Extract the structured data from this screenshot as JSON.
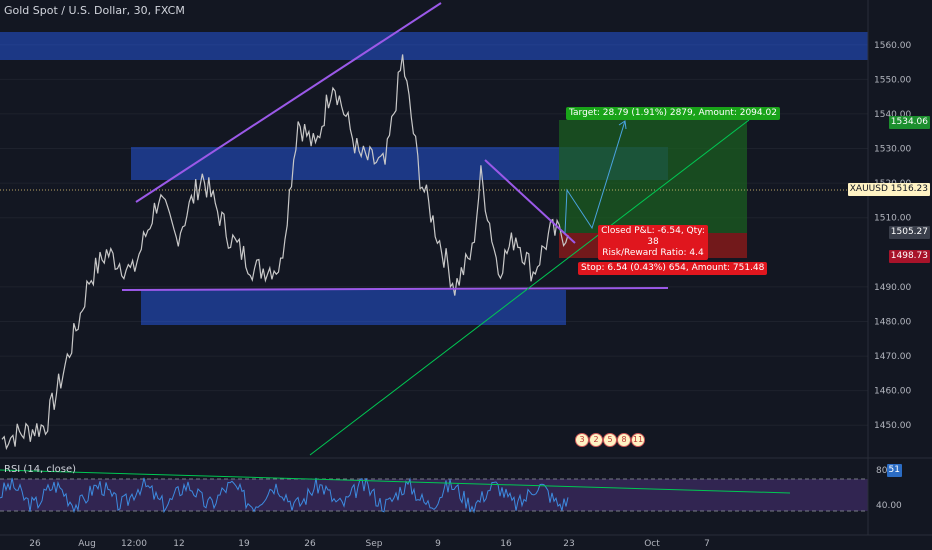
{
  "header": {
    "title": "Gold Spot / U.S. Dollar, 30, FXCM",
    "rsi_label": "RSI (14, close)"
  },
  "price_axis": {
    "ticks": [
      "1560.00",
      "1550.00",
      "1540.00",
      "1530.00",
      "1520.00",
      "1510.00",
      "1490.00",
      "1480.00",
      "1470.00",
      "1460.00",
      "1450.00"
    ],
    "rsi_ticks": [
      "80.00",
      "40.00"
    ]
  },
  "time_axis": {
    "ticks": [
      "26",
      "Aug",
      "12:00",
      "12",
      "19",
      "26",
      "Sep",
      "9",
      "16",
      "23",
      "Oct",
      "7"
    ]
  },
  "price_tags": {
    "symbol_label": "XAUUSD",
    "symbol_price": "1516.23",
    "target_price": "1534.06",
    "entry_price": "1505.27",
    "stop_price": "1498.73",
    "rsi_value": "51"
  },
  "position": {
    "target_text": "Target: 28.79 (1.91%) 2879, Amount: 2094.02",
    "stop_text": "Stop: 6.54 (0.43%) 654, Amount: 751.48",
    "closed_pnl": "Closed P&L: -6.54, Qty: 38",
    "risk_reward": "Risk/Reward Ratio: 4.4"
  },
  "events": [
    "3",
    "2",
    "5",
    "8",
    "11"
  ],
  "colors": {
    "background": "#131722",
    "zone": "#2962ff",
    "trendline": "#9b59e8",
    "support_line": "#00c853",
    "profit": "#1b5e20",
    "loss": "#8b1a1a",
    "rsi_line": "#3d8be0"
  },
  "chart_data": {
    "type": "line",
    "symbol": "XAUUSD",
    "timeframe": "30",
    "ylim": [
      1444,
      1566
    ],
    "x_ticks": [
      "26",
      "Aug",
      "12:00",
      "12",
      "19",
      "26",
      "Sep",
      "9",
      "16",
      "23",
      "Oct",
      "7"
    ],
    "close_path": [
      {
        "t": 0,
        "v": 1446
      },
      {
        "t": 10,
        "v": 1450
      },
      {
        "t": 14,
        "v": 1465
      },
      {
        "t": 18,
        "v": 1482
      },
      {
        "t": 20,
        "v": 1492
      },
      {
        "t": 24,
        "v": 1500
      },
      {
        "t": 30,
        "v": 1494
      },
      {
        "t": 36,
        "v": 1516
      },
      {
        "t": 40,
        "v": 1504
      },
      {
        "t": 46,
        "v": 1522
      },
      {
        "t": 52,
        "v": 1505
      },
      {
        "t": 58,
        "v": 1495
      },
      {
        "t": 64,
        "v": 1496
      },
      {
        "t": 68,
        "v": 1538
      },
      {
        "t": 72,
        "v": 1530
      },
      {
        "t": 76,
        "v": 1550
      },
      {
        "t": 82,
        "v": 1528
      },
      {
        "t": 88,
        "v": 1525
      },
      {
        "t": 92,
        "v": 1556
      },
      {
        "t": 96,
        "v": 1522
      },
      {
        "t": 100,
        "v": 1505
      },
      {
        "t": 104,
        "v": 1490
      },
      {
        "t": 108,
        "v": 1500
      },
      {
        "t": 110,
        "v": 1522
      },
      {
        "t": 114,
        "v": 1495
      },
      {
        "t": 118,
        "v": 1505
      },
      {
        "t": 122,
        "v": 1494
      },
      {
        "t": 126,
        "v": 1506
      },
      {
        "t": 130,
        "v": 1505
      }
    ],
    "zones": [
      {
        "from": 1551,
        "to": 1558
      },
      {
        "from": 1518,
        "to": 1528
      },
      {
        "from": 1482,
        "to": 1490
      }
    ],
    "levels": {
      "current": 1516.23,
      "target": 1534.06,
      "entry": 1505.27,
      "stop": 1498.73,
      "support": 1490
    },
    "rsi": {
      "ylim": [
        0,
        100
      ],
      "levels": [
        70,
        30
      ],
      "last": 51
    }
  }
}
